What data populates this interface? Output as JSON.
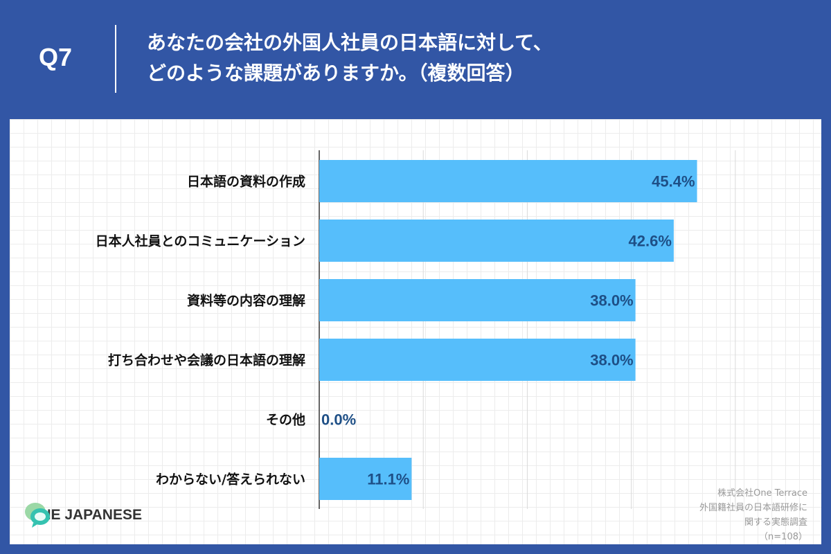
{
  "header": {
    "question_no": "Q7",
    "title_line1": "あなたの会社の外国人社員の日本語に対して、",
    "title_line2": "どのような課題がありますか。（複数回答）"
  },
  "chart_data": {
    "type": "bar",
    "orientation": "horizontal",
    "categories": [
      "日本語の資料の作成",
      "日本人社員とのコミュニケーション",
      "資料等の内容の理解",
      "打ち合わせや会議の日本語の理解",
      "その他",
      "わからない/答えられない"
    ],
    "values": [
      45.4,
      42.6,
      38.0,
      38.0,
      0.0,
      11.1
    ],
    "value_labels": [
      "45.4%",
      "42.6%",
      "38.0%",
      "38.0%",
      "0.0%",
      "11.1%"
    ],
    "xlim": [
      0,
      60
    ],
    "gridline_step": 12.5,
    "bar_color": "#56befb",
    "value_label_color": "#1e4f86",
    "grid": true
  },
  "logo": {
    "text": "ONE JAPANESE",
    "icon": "speech-bubbles-icon"
  },
  "source": {
    "line1": "株式会社One Terrace",
    "line2": "外国籍社員の日本語研修に",
    "line3": "関する実態調査",
    "line4": "（n=108）"
  }
}
